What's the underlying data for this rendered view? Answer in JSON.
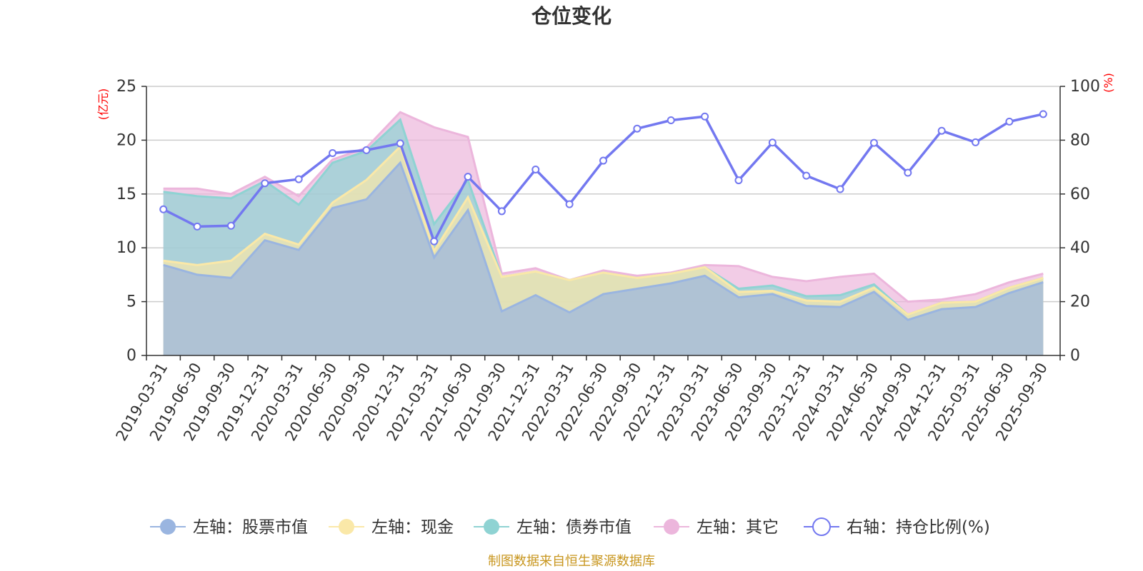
{
  "chart_data": {
    "type": "area",
    "title": "仓位变化",
    "left_unit": "(亿元)",
    "right_unit": "(%)",
    "left_ylim": [
      0,
      25
    ],
    "left_yticks": [
      0,
      5,
      10,
      15,
      20,
      25
    ],
    "right_ylim": [
      0,
      100
    ],
    "right_yticks": [
      0,
      20,
      40,
      60,
      80,
      100
    ],
    "grid": true,
    "legend_position": "bottom",
    "categories": [
      "2019-03-31",
      "2019-06-30",
      "2019-09-30",
      "2019-12-31",
      "2020-03-31",
      "2020-06-30",
      "2020-09-30",
      "2020-12-31",
      "2021-03-31",
      "2021-06-30",
      "2021-09-30",
      "2021-12-31",
      "2022-03-31",
      "2022-06-30",
      "2022-09-30",
      "2022-12-31",
      "2023-03-31",
      "2023-06-30",
      "2023-09-30",
      "2023-12-31",
      "2024-03-31",
      "2024-06-30",
      "2024-09-30",
      "2024-12-31",
      "2025-03-31",
      "2025-06-30",
      "2025-09-30"
    ],
    "series": [
      {
        "name": "左轴：股票市值",
        "axis": "left",
        "stack": true,
        "color": "#9ab5e0",
        "values": [
          8.4,
          7.5,
          7.2,
          10.7,
          9.8,
          13.7,
          14.5,
          17.9,
          9.1,
          13.5,
          4.1,
          5.6,
          4.0,
          5.7,
          6.2,
          6.7,
          7.4,
          5.4,
          5.7,
          4.6,
          4.5,
          5.9,
          3.3,
          4.3,
          4.5,
          5.8,
          6.8
        ]
      },
      {
        "name": "左轴：现金",
        "axis": "left",
        "stack": true,
        "color": "#fae8a8",
        "values": [
          0.4,
          0.9,
          1.6,
          0.6,
          0.5,
          0.5,
          1.8,
          1.5,
          0.6,
          1.2,
          3.2,
          2.2,
          3.0,
          2.0,
          1.0,
          0.9,
          0.8,
          0.5,
          0.3,
          0.5,
          0.5,
          0.4,
          0.5,
          0.6,
          0.5,
          0.5,
          0.4
        ]
      },
      {
        "name": "左轴：债券市值",
        "axis": "left",
        "stack": true,
        "color": "#8fd3d3",
        "values": [
          6.4,
          6.4,
          5.8,
          4.9,
          3.7,
          3.7,
          2.7,
          2.5,
          2.5,
          1.6,
          0.0,
          0.0,
          0.0,
          0.0,
          0.0,
          0.0,
          0.0,
          0.3,
          0.5,
          0.4,
          0.6,
          0.3,
          0.0,
          0.0,
          0.0,
          0.0,
          0.0
        ]
      },
      {
        "name": "左轴：其它",
        "axis": "left",
        "stack": true,
        "color": "#ecb6dc",
        "values": [
          0.3,
          0.7,
          0.4,
          0.4,
          0.8,
          0.3,
          0.3,
          0.7,
          9.0,
          4.0,
          0.3,
          0.3,
          0.0,
          0.2,
          0.2,
          0.1,
          0.2,
          2.1,
          0.8,
          1.4,
          1.7,
          1.0,
          1.2,
          0.3,
          0.7,
          0.5,
          0.4
        ]
      },
      {
        "name": "右轴：持仓比例(%)",
        "axis": "right",
        "type": "line",
        "color": "#7378f0",
        "values": [
          54.3,
          47.9,
          48.2,
          64.0,
          65.5,
          75.2,
          76.3,
          78.8,
          42.4,
          66.4,
          53.6,
          69.1,
          56.2,
          72.4,
          84.3,
          87.4,
          88.8,
          65.1,
          79.1,
          66.8,
          61.8,
          79.0,
          67.9,
          83.5,
          79.2,
          86.9,
          89.7
        ]
      }
    ],
    "source_note": "制图数据来自恒生聚源数据库"
  }
}
